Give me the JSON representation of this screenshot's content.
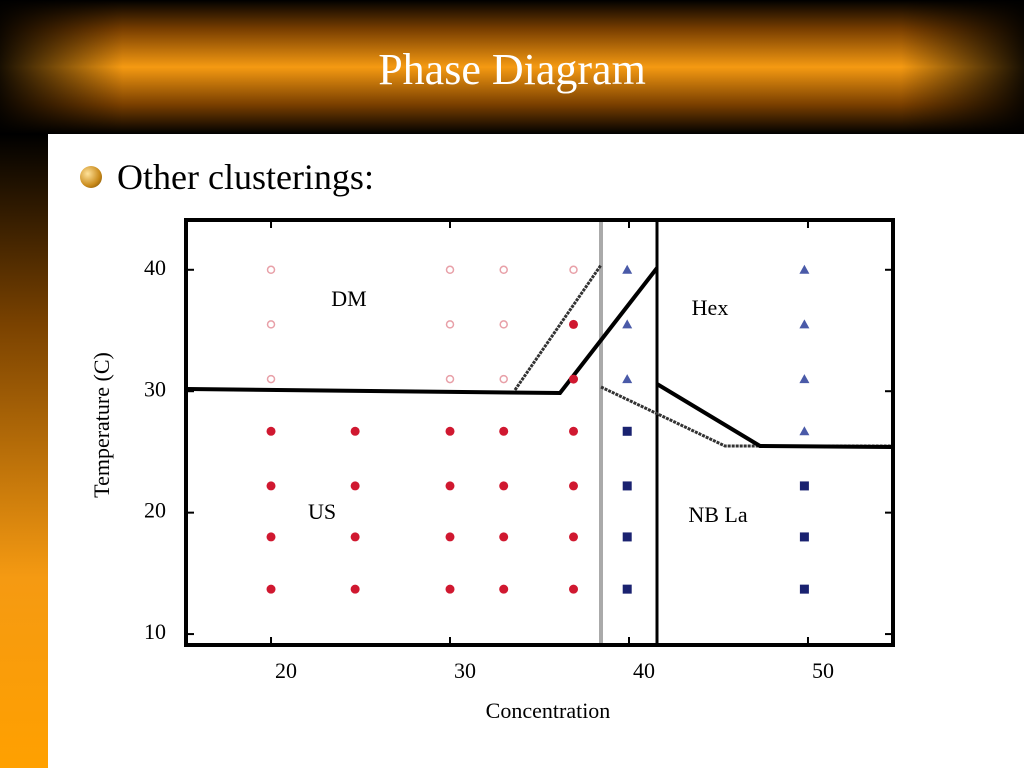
{
  "title": "Phase Diagram",
  "bullet": "Other clusterings:",
  "chart_data": {
    "type": "scatter",
    "xlabel": "Concentration",
    "ylabel": "Temperature (C)",
    "annotations": [
      "DM",
      "Hex",
      "US",
      "NB La"
    ],
    "xlim": [
      15.25,
      54.75
    ],
    "ylim": [
      9.1,
      44.1
    ],
    "xticks": [
      20,
      30,
      40,
      50
    ],
    "yticks": [
      10,
      20,
      30,
      40
    ],
    "series": [
      {
        "marker": "open-circle",
        "color": "#e8a0a8",
        "x": [
          20,
          20,
          20,
          30,
          30,
          30,
          33,
          33,
          33,
          36.9
        ],
        "values": [
          40,
          35.5,
          31,
          40,
          35.5,
          31,
          40,
          35.5,
          31,
          40
        ]
      },
      {
        "marker": "circle",
        "color": "#d01830",
        "x": [
          36.9,
          36.9,
          20,
          20,
          20,
          20,
          24.7,
          24.7,
          24.7,
          24.7,
          30,
          30,
          30,
          30,
          33,
          33,
          33,
          33,
          36.9,
          36.9,
          36.9,
          36.9
        ],
        "values": [
          35.5,
          31,
          26.7,
          22.2,
          18,
          13.7,
          26.7,
          22.2,
          18,
          13.7,
          26.7,
          22.2,
          18,
          13.7,
          26.7,
          22.2,
          18,
          13.7,
          26.7,
          22.2,
          18,
          13.7
        ]
      },
      {
        "marker": "triangle",
        "color": "#4a5aa8",
        "x": [
          39.9,
          39.9,
          39.9,
          49.8,
          49.8,
          49.8,
          49.8
        ],
        "values": [
          40,
          35.5,
          31,
          40,
          35.5,
          31,
          26.7
        ]
      },
      {
        "marker": "square",
        "color": "#1a2270",
        "x": [
          39.9,
          39.9,
          39.9,
          39.9,
          49.8,
          49.8,
          49.8
        ],
        "values": [
          26.7,
          22.2,
          18,
          13.7,
          22.2,
          18,
          13.7
        ]
      }
    ]
  }
}
